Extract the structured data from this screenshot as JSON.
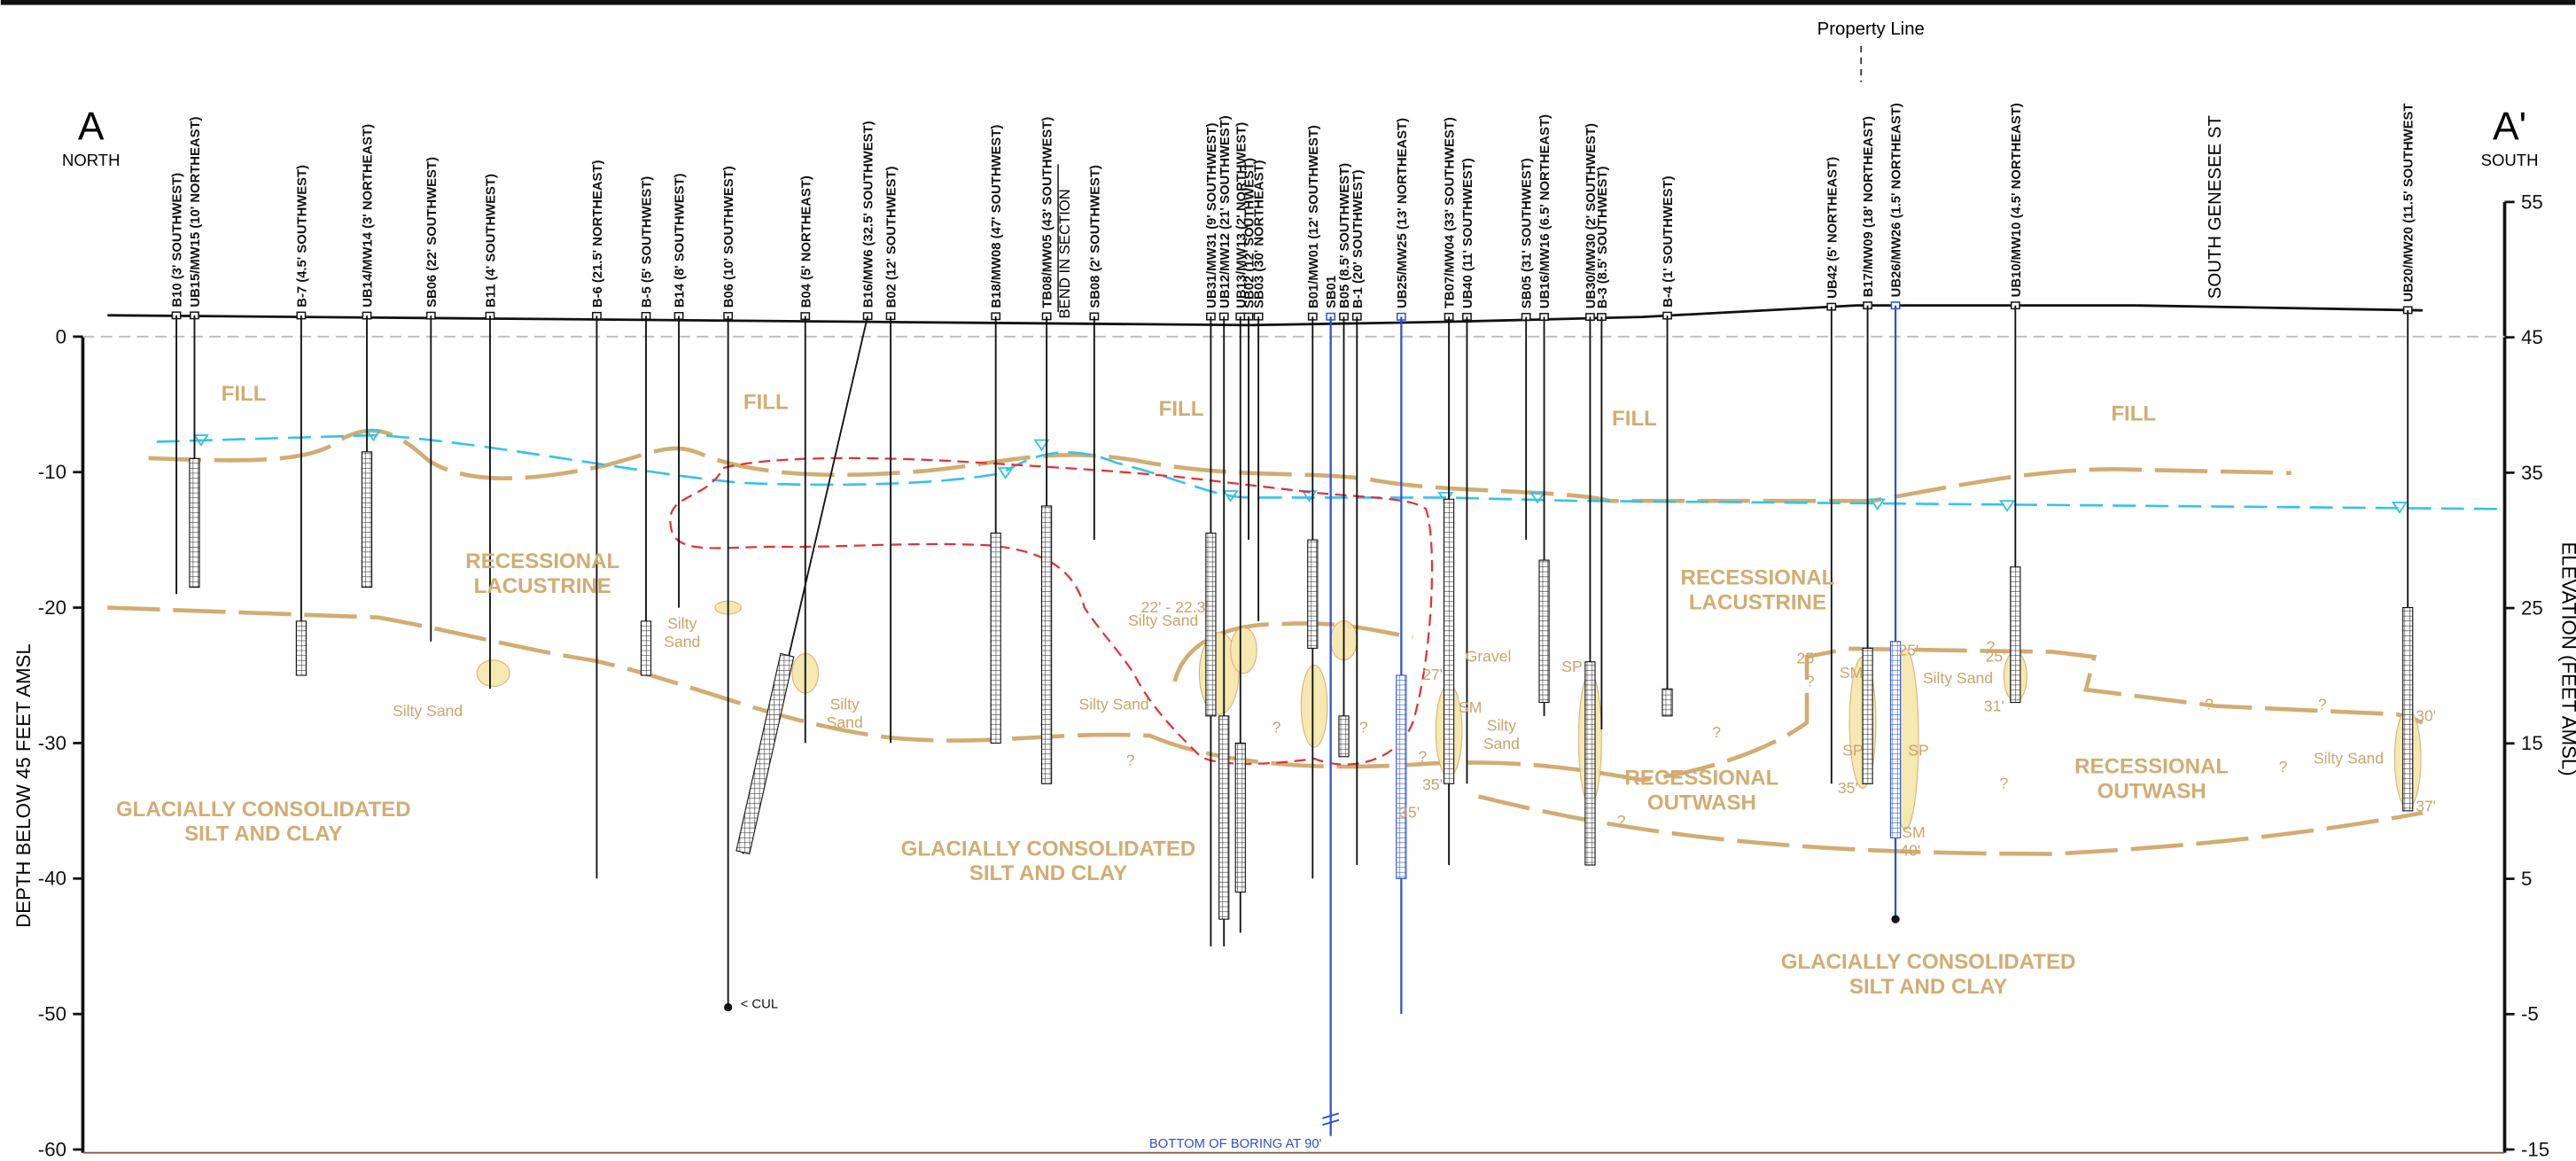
{
  "header": {
    "left_label": "A",
    "left_direction": "NORTH",
    "right_label": "A'",
    "right_direction": "SOUTH",
    "property_line": "Property Line",
    "bend": "BEND IN SECTION",
    "street": "SOUTH GENESEE ST"
  },
  "axes": {
    "left_title": "DEPTH BELOW 45 FEET AMSL",
    "left_ticks": [
      0,
      -10,
      -20,
      -30,
      -40,
      -50,
      -60
    ],
    "right_title": "ELEVATION (FEET AMSL)",
    "right_ticks": [
      55,
      45,
      35,
      25,
      15,
      5,
      -5,
      -15
    ]
  },
  "borings": [
    "B10 (3' SOUTHWEST)",
    "UB15/MW15 (10' NORTHEAST)",
    "B-7 (4.5' SOUTHWEST)",
    "UB14/MW14 (3' NORTHEAST)",
    "SB06 (22' SOUTHWEST)",
    "B11 (4' SOUTHWEST)",
    "B-6 (21.5' NORTHEAST)",
    "B-5 (5' SOUTHWEST)",
    "B14 (8' SOUTHWEST)",
    "B06 (10' SOUTHWEST)",
    "B04 (5' NORTHEAST)",
    "B16/MW6 (32.5' SOUTHWEST)",
    "B02 (12' SOUTHWEST)",
    "B18/MW08 (47' SOUTHWEST)",
    "TB08/MW05 (43' SOUTHWEST)",
    "SB08 (2' SOUTHWEST)",
    "UB31/MW31 (9' SOUTHWEST)",
    "UB12/MW12 (21' SOUTHWEST)",
    "UB13/MW13 (2' NORTHWEST)",
    "SB02 (12' SOUTHWEST)",
    "SB03 (30' NORTHEAST)",
    "B01/MW01 (12' SOUTHWEST)",
    "B05 (8.5' SOUTHWEST)",
    "SB01",
    "B-1 (20' SOUTHWEST)",
    "UB25/MW25 (13' NORTHEAST)",
    "TB07/MW04 (33' SOUTHWEST)",
    "UB40 (11' SOUTHWEST)",
    "SB05 (31' SOUTHWEST)",
    "UB16/MW16 (6.5' NORTHEAST)",
    "UB30/MW30 (2' SOUTHWEST)",
    "B-3 (8.5' SOUTHWEST)",
    "B-4 (1' SOUTHWEST)",
    "UB42 (5' NORTHEAST)",
    "B17/MW09 (18' NORTHEAST)",
    "UB26/MW26 (1.5' NORTHEAST)",
    "UB10/MW10 (4.5' NORTHEAST)",
    "UB20/MW20 (11.5' SOUTHWEST"
  ],
  "units": [
    [
      "FILL"
    ],
    [
      "FILL"
    ],
    [
      "FILL"
    ],
    [
      "FILL"
    ],
    [
      "FILL"
    ],
    [
      "RECESSIONAL",
      "LACUSTRINE"
    ],
    [
      "RECESSIONAL",
      "LACUSTRINE"
    ],
    [
      "GLACIALLY CONSOLIDATED",
      "SILT AND CLAY"
    ],
    [
      "GLACIALLY CONSOLIDATED",
      "SILT AND CLAY"
    ],
    [
      "GLACIALLY CONSOLIDATED",
      "SILT AND CLAY"
    ],
    [
      "RECESSIONAL",
      "OUTWASH"
    ],
    [
      "RECESSIONAL",
      "OUTWASH"
    ]
  ],
  "annotations": [
    [
      "Silty",
      "Sand"
    ],
    [
      "Silty Sand"
    ],
    [
      "Silty",
      "Sand"
    ],
    [
      "22' - 22.3'"
    ],
    [
      "Silty Sand"
    ],
    [
      "Silty Sand"
    ],
    [
      "Gravel"
    ],
    [
      "Silty",
      "Sand"
    ],
    [
      "Silty Sand"
    ],
    [
      "Silty Sand"
    ],
    [
      "< CUL"
    ],
    [
      "BOTTOM OF BORING AT 90'"
    ],
    [
      "27'"
    ],
    [
      "35'"
    ],
    [
      "35'"
    ],
    [
      "25'"
    ],
    [
      "40'"
    ],
    [
      "31'"
    ],
    [
      "25'"
    ],
    [
      "30'"
    ],
    [
      "37'"
    ],
    [
      "25'"
    ],
    [
      "35'"
    ],
    [
      "SM"
    ],
    [
      "SP"
    ],
    [
      "SM"
    ],
    [
      "SP"
    ],
    [
      "SP"
    ],
    [
      "SM"
    ],
    [
      "?"
    ],
    [
      "?"
    ],
    [
      "?"
    ],
    [
      "?"
    ],
    [
      "?"
    ],
    [
      "?"
    ],
    [
      "?"
    ],
    [
      "?"
    ],
    [
      "?"
    ],
    [
      "?"
    ],
    [
      "?"
    ],
    [
      "?"
    ]
  ]
}
